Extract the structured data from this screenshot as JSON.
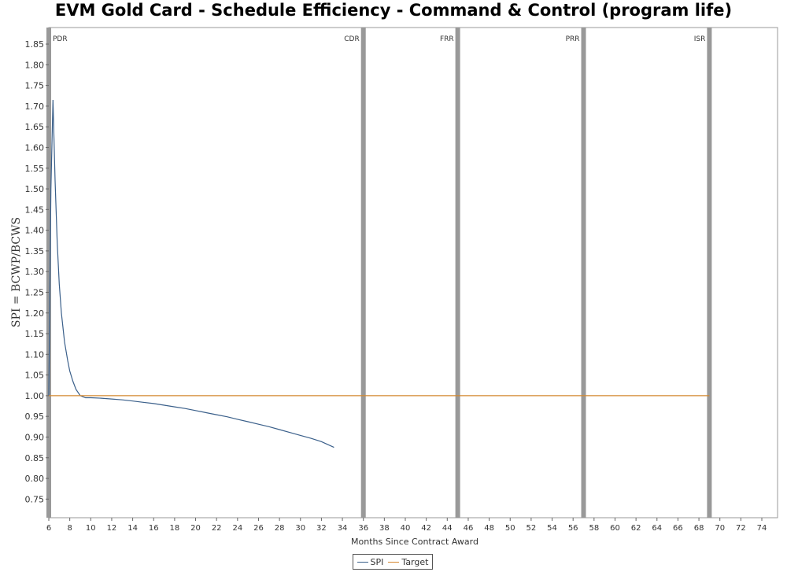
{
  "chart_data": {
    "type": "line",
    "title": "EVM Gold Card - Schedule Efficiency - Command & Control (program life)",
    "xlabel": "Months Since Contract Award",
    "ylabel": "SPI = BCWP/BCWS",
    "xlim": [
      6,
      75.5
    ],
    "ylim": [
      0.705,
      1.89
    ],
    "x_ticks": [
      "6",
      "8",
      "10",
      "12",
      "14",
      "16",
      "18",
      "20",
      "22",
      "24",
      "26",
      "28",
      "30",
      "32",
      "34",
      "36",
      "38",
      "40",
      "42",
      "44",
      "46",
      "48",
      "50",
      "52",
      "54",
      "56",
      "58",
      "60",
      "62",
      "64",
      "66",
      "68",
      "70",
      "72",
      "74"
    ],
    "y_ticks": [
      "0.75",
      "0.80",
      "0.85",
      "0.90",
      "0.95",
      "1.00",
      "1.05",
      "1.10",
      "1.15",
      "1.20",
      "1.25",
      "1.30",
      "1.35",
      "1.40",
      "1.45",
      "1.50",
      "1.55",
      "1.60",
      "1.65",
      "1.70",
      "1.75",
      "1.80",
      "1.85"
    ],
    "grid": false,
    "legend_position": "bottom-center",
    "milestones": [
      {
        "label": "PDR",
        "x": 6
      },
      {
        "label": "CDR",
        "x": 36
      },
      {
        "label": "FRR",
        "x": 45
      },
      {
        "label": "PRR",
        "x": 57
      },
      {
        "label": "ISR",
        "x": 69
      }
    ],
    "series": [
      {
        "name": "SPI",
        "color": "#3a5f8a",
        "x": [
          6.0,
          6.2,
          6.4,
          6.6,
          6.8,
          7.0,
          7.2,
          7.5,
          7.8,
          8.0,
          8.3,
          8.6,
          9.0,
          9.5,
          10.0,
          11,
          12,
          13,
          14,
          15,
          16,
          17,
          18,
          19,
          20,
          21,
          22,
          23,
          24,
          25,
          26,
          27,
          28,
          29,
          30,
          31,
          32,
          33.2
        ],
        "values": [
          1.0,
          1.5,
          1.715,
          1.52,
          1.37,
          1.27,
          1.2,
          1.13,
          1.085,
          1.06,
          1.035,
          1.015,
          1.0,
          0.995,
          0.995,
          0.994,
          0.992,
          0.99,
          0.987,
          0.984,
          0.981,
          0.977,
          0.973,
          0.969,
          0.964,
          0.959,
          0.954,
          0.949,
          0.943,
          0.937,
          0.931,
          0.925,
          0.918,
          0.911,
          0.904,
          0.897,
          0.889,
          0.875
        ]
      },
      {
        "name": "Target",
        "color": "#d4872e",
        "x": [
          6,
          69
        ],
        "values": [
          1.0,
          1.0
        ]
      }
    ]
  }
}
